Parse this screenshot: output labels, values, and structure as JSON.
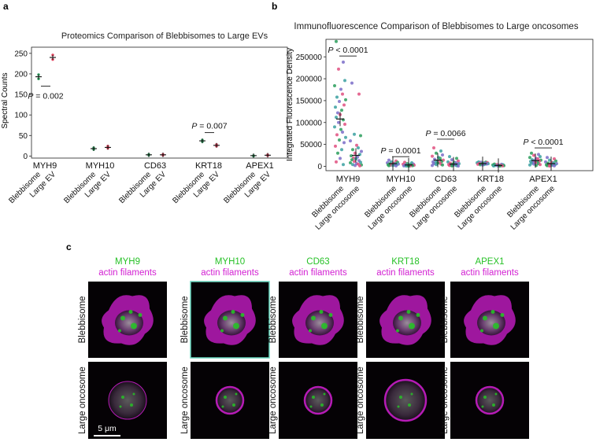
{
  "panels": {
    "a": {
      "letter": "a",
      "title": "Proteomics Comparison of Blebbisomes to Large EVs",
      "ylabel": "Spectral Counts"
    },
    "b": {
      "letter": "b",
      "title": "Immunofluorescence Comparison of Blebbisomes to Large oncosomes",
      "ylabel": "Integrated Fluorescence Density"
    },
    "c": {
      "letter": "c",
      "stain_label": "actin filaments",
      "row_labels": [
        "Blebbisome",
        "Large oncosome"
      ],
      "scale_bar": "5 μm",
      "colors": {
        "marker": "#27c127",
        "actin": "#d21fd2",
        "highlight_border": "#6ad8c0"
      }
    }
  },
  "chart_data": [
    {
      "type": "scatter",
      "panel": "a",
      "title": "Proteomics Comparison of Blebbisomes to Large EVs",
      "xlabel": "",
      "ylabel": "Spectral Counts",
      "ylim": [
        -5,
        265
      ],
      "yticks": [
        0,
        50,
        100,
        150,
        200,
        250
      ],
      "groups": [
        "MYH9",
        "MYH10",
        "CD63",
        "KRT18",
        "APEX1"
      ],
      "subgroups": [
        "Blebbisome",
        "Large EV"
      ],
      "points": [
        {
          "group": "MYH9",
          "subgroup": "Blebbisome",
          "mean": 193,
          "values": [
            188,
            198
          ],
          "color": "#2a9d5c"
        },
        {
          "group": "MYH9",
          "subgroup": "Large EV",
          "mean": 240,
          "values": [
            235,
            246
          ],
          "color": "#e0405a"
        },
        {
          "group": "MYH10",
          "subgroup": "Blebbisome",
          "mean": 18,
          "values": [
            16,
            20
          ],
          "color": "#2a9d5c"
        },
        {
          "group": "MYH10",
          "subgroup": "Large EV",
          "mean": 21,
          "values": [
            19,
            24
          ],
          "color": "#e0405a"
        },
        {
          "group": "CD63",
          "subgroup": "Blebbisome",
          "mean": 3,
          "values": [
            2,
            4
          ],
          "color": "#2a9d5c"
        },
        {
          "group": "CD63",
          "subgroup": "Large EV",
          "mean": 3,
          "values": [
            2,
            4
          ],
          "color": "#e0405a"
        },
        {
          "group": "KRT18",
          "subgroup": "Blebbisome",
          "mean": 37,
          "values": [
            35,
            39
          ],
          "color": "#2a9d5c"
        },
        {
          "group": "KRT18",
          "subgroup": "Large EV",
          "mean": 26,
          "values": [
            24,
            28
          ],
          "color": "#e0405a"
        },
        {
          "group": "APEX1",
          "subgroup": "Blebbisome",
          "mean": 1,
          "values": [
            0,
            1
          ],
          "color": "#2a9d5c"
        },
        {
          "group": "APEX1",
          "subgroup": "Large EV",
          "mean": 2,
          "values": [
            1,
            3
          ],
          "color": "#e0405a"
        }
      ],
      "annotations": [
        {
          "group": "MYH9",
          "text": "P = 0.002",
          "line_y": 170,
          "text_position": "below"
        },
        {
          "group": "KRT18",
          "text": "P = 0.007",
          "line_y": 57,
          "text_position": "above"
        }
      ]
    },
    {
      "type": "scatter",
      "panel": "b",
      "title": "Immunofluorescence Comparison of Blebbisomes to Large oncosomes",
      "xlabel": "",
      "ylabel": "Integrated Fluorescence Density",
      "ylim": [
        -10000,
        290000
      ],
      "yticks": [
        0,
        50000,
        100000,
        150000,
        200000,
        250000
      ],
      "groups": [
        "MYH9",
        "MYH10",
        "CD63",
        "KRT18",
        "APEX1"
      ],
      "subgroups": [
        "Blebbisome",
        "Large oncosome"
      ],
      "point_colors": [
        "#2a9d5c",
        "#7a6cc8",
        "#e05080",
        "#3aa0a0"
      ],
      "points": [
        {
          "group": "MYH9",
          "subgroup": "Blebbisome",
          "mean": 108000,
          "values": [
            285000,
            238000,
            222000,
            196000,
            184000,
            176000,
            165000,
            158000,
            152000,
            148000,
            140000,
            135000,
            128000,
            122000,
            118000,
            112000,
            106000,
            100000,
            96000,
            90000,
            84000,
            78000,
            72000,
            66000,
            60000,
            54000,
            46000,
            38000,
            30000,
            18000,
            10000,
            4000
          ]
        },
        {
          "group": "MYH9",
          "subgroup": "Large oncosome",
          "mean": 25000,
          "values": [
            190000,
            165000,
            73000,
            70000,
            58000,
            48000,
            42000,
            38000,
            34000,
            30000,
            27000,
            24000,
            21000,
            19000,
            17000,
            15000,
            13000,
            11000,
            9000,
            8000,
            6000,
            5000,
            4000,
            3000,
            2000,
            1000
          ]
        },
        {
          "group": "MYH10",
          "subgroup": "Blebbisome",
          "mean": 6000,
          "values": [
            14000,
            12000,
            10000,
            9000,
            8000,
            7000,
            6000,
            5500,
            5000,
            4500,
            4000,
            3500,
            3000,
            2500,
            2000,
            1500,
            1000
          ]
        },
        {
          "group": "MYH10",
          "subgroup": "Large oncosome",
          "mean": 3000,
          "values": [
            9000,
            8000,
            6000,
            5000,
            4500,
            4000,
            3500,
            3000,
            2500,
            2000,
            1500,
            1000,
            800,
            500,
            300
          ]
        },
        {
          "group": "CD63",
          "subgroup": "Blebbisome",
          "mean": 14000,
          "values": [
            42000,
            35000,
            30000,
            26000,
            23000,
            20000,
            18000,
            16000,
            14000,
            12000,
            11000,
            10000,
            9000,
            8000,
            7000,
            6000,
            5000,
            4000,
            3000,
            2000
          ]
        },
        {
          "group": "CD63",
          "subgroup": "Large oncosome",
          "mean": 5000,
          "values": [
            22000,
            18000,
            15000,
            12000,
            10000,
            9000,
            8000,
            7000,
            6000,
            5000,
            4500,
            4000,
            3500,
            3000,
            2500,
            2000,
            1500,
            1000,
            600
          ]
        },
        {
          "group": "KRT18",
          "subgroup": "Blebbisome",
          "mean": 6000,
          "values": [
            10000,
            9500,
            9000,
            8500,
            8000,
            7500,
            7000,
            6500,
            6000,
            5500,
            5000,
            4500,
            4000,
            3500,
            3000
          ]
        },
        {
          "group": "KRT18",
          "subgroup": "Large oncosome",
          "mean": 2000,
          "values": [
            5000,
            4500,
            4000,
            3500,
            3000,
            2500,
            2000,
            1800,
            1500,
            1200,
            1000,
            800,
            600
          ]
        },
        {
          "group": "APEX1",
          "subgroup": "Blebbisome",
          "mean": 13000,
          "values": [
            30000,
            27000,
            25000,
            22000,
            20000,
            18000,
            17000,
            15000,
            14000,
            13000,
            12000,
            11000,
            10000,
            9000,
            8000,
            7000,
            6000,
            5000,
            4000,
            3000,
            2000
          ]
        },
        {
          "group": "APEX1",
          "subgroup": "Large oncosome",
          "mean": 6000,
          "values": [
            20000,
            17000,
            14000,
            12000,
            10000,
            9000,
            8000,
            7000,
            6000,
            5000,
            4000,
            3500,
            3000,
            2500,
            2000,
            1500,
            1000,
            500
          ]
        }
      ],
      "annotations": [
        {
          "group": "MYH9",
          "text": "P < 0.0001",
          "line_y": 252000
        },
        {
          "group": "MYH10",
          "text": "P = 0.0001",
          "line_y": 22000
        },
        {
          "group": "CD63",
          "text": "P = 0.0066",
          "line_y": 62000
        },
        {
          "group": "APEX1",
          "text": "P < 0.0001",
          "line_y": 42000
        }
      ]
    }
  ],
  "micrographs": [
    {
      "marker": "MYH9"
    },
    {
      "marker": "MYH10"
    },
    {
      "marker": "CD63"
    },
    {
      "marker": "KRT18"
    },
    {
      "marker": "APEX1"
    }
  ]
}
